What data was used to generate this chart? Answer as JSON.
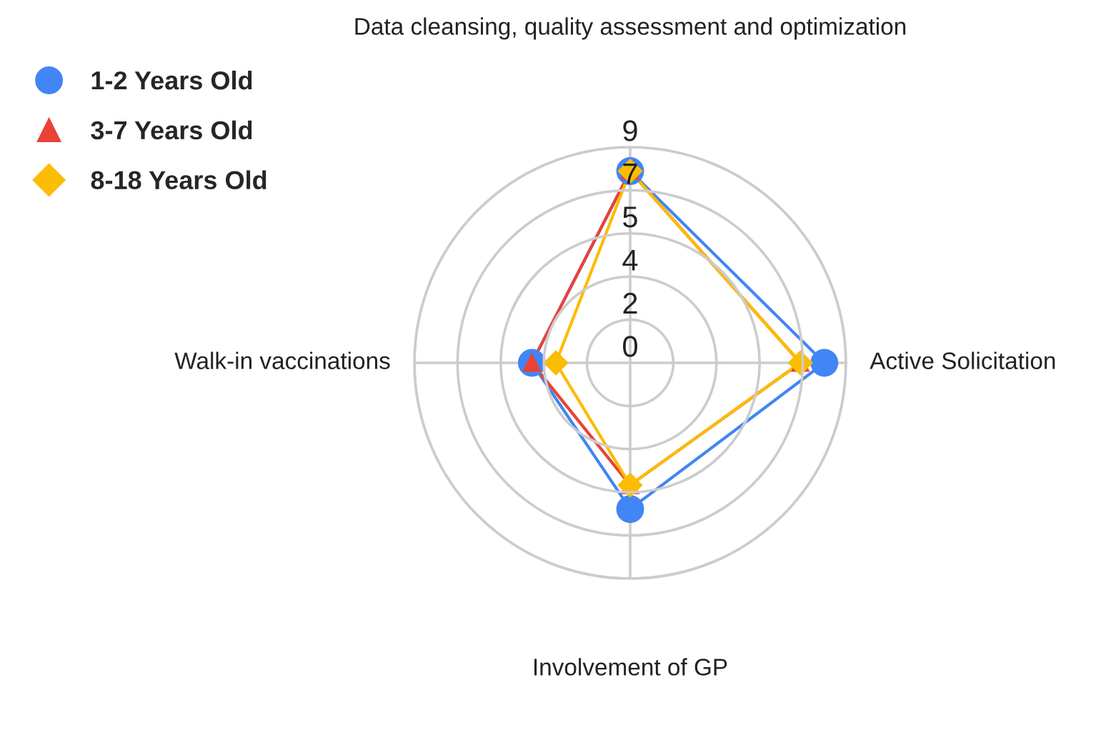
{
  "chart_data": {
    "type": "radar",
    "categories": [
      "Data cleansing, quality assessment and optimization",
      "Active Solicitation",
      "Involvement of GP",
      "Walk-in vaccinations"
    ],
    "series": [
      {
        "name": "1-2 Years Old",
        "color": "#4285f4",
        "marker": "circle",
        "values": [
          8.0,
          8.1,
          6.1,
          4.1
        ]
      },
      {
        "name": "3-7 Years Old",
        "color": "#ea4335",
        "marker": "triangle",
        "values": [
          8.0,
          7.1,
          5.1,
          4.1
        ]
      },
      {
        "name": "8-18 Years Old",
        "color": "#fbbc04",
        "marker": "diamond",
        "values": [
          8.0,
          7.1,
          5.1,
          3.1
        ]
      }
    ],
    "ylim": [
      0,
      9
    ],
    "yticks": [
      {
        "value": 0,
        "label": "0"
      },
      {
        "value": 1.8,
        "label": "2"
      },
      {
        "value": 3.6,
        "label": "4"
      },
      {
        "value": 5.4,
        "label": "5"
      },
      {
        "value": 7.2,
        "label": "7"
      },
      {
        "value": 9,
        "label": "9"
      }
    ],
    "grid": true,
    "legend": "top left",
    "line_style": "solid"
  }
}
